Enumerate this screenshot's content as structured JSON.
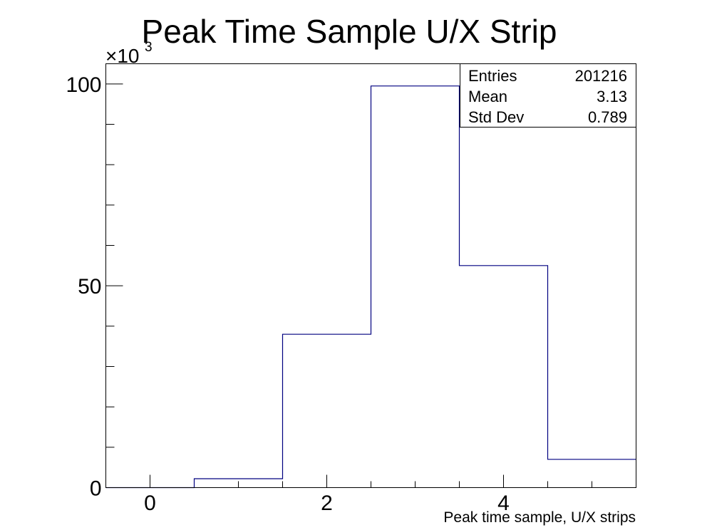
{
  "chart_data": {
    "type": "histogram",
    "title": "Peak Time Sample U/X Strip",
    "xlabel": "Peak time sample, U/X strips",
    "ylabel": "",
    "y_multiplier_label": "×10",
    "y_multiplier_exponent": "3",
    "xlim": [
      -0.5,
      5.5
    ],
    "ylim": [
      0,
      105000
    ],
    "x_ticks": [
      {
        "value": 0,
        "label": "0"
      },
      {
        "value": 2,
        "label": "2"
      },
      {
        "value": 4,
        "label": "4"
      }
    ],
    "y_ticks": [
      {
        "value": 0,
        "label": "0"
      },
      {
        "value": 50000,
        "label": "50"
      },
      {
        "value": 100000,
        "label": "100"
      }
    ],
    "bins": [
      {
        "low": -0.5,
        "high": 0.5,
        "count": 0
      },
      {
        "low": 0.5,
        "high": 1.5,
        "count": 2200
      },
      {
        "low": 1.5,
        "high": 2.5,
        "count": 38000
      },
      {
        "low": 2.5,
        "high": 3.5,
        "count": 99500
      },
      {
        "low": 3.5,
        "high": 4.5,
        "count": 55000
      },
      {
        "low": 4.5,
        "high": 5.5,
        "count": 7000
      }
    ],
    "line_color": "#000080",
    "stats_box": {
      "entries_label": "Entries",
      "entries_value": "201216",
      "mean_label": "Mean",
      "mean_value": "3.13",
      "stddev_label": "Std Dev",
      "stddev_value": "0.789"
    }
  }
}
